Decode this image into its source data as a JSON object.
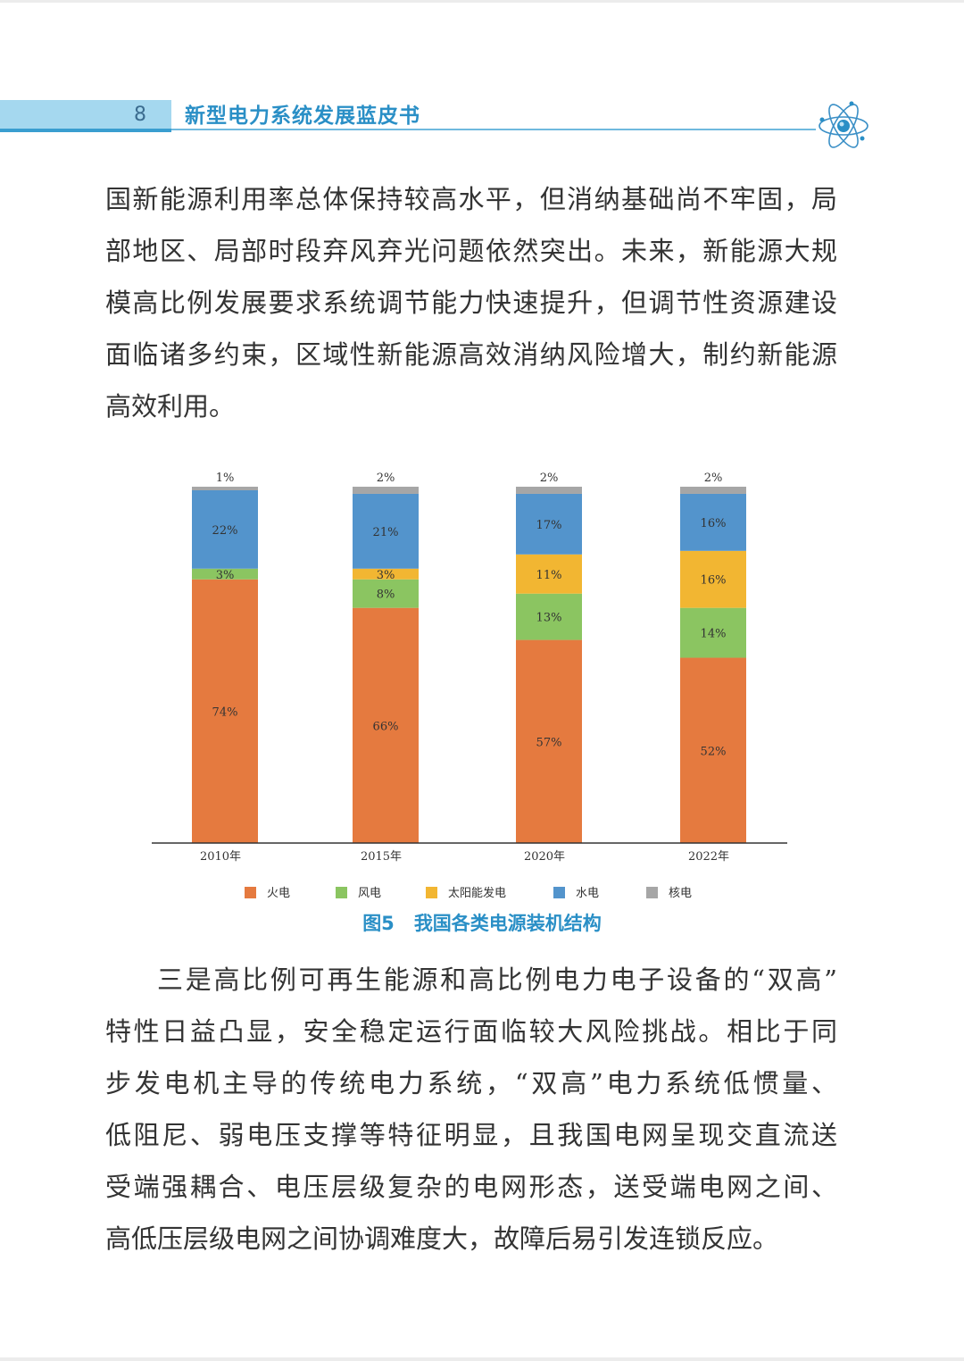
{
  "header": {
    "page_number": "8",
    "book_title": "新型电力系统发展蓝皮书",
    "logo_icon": "atom-icon"
  },
  "paragraph1": {
    "lines": [
      "国新能源利用率总体保持较高水平，但消纳基础尚不牢固，局",
      "部地区、局部时段弃风弃光问题依然突出。未来，新能源大规",
      "模高比例发展要求系统调节能力快速提升，但调节性资源建设",
      "面临诸多约束，区域性新能源高效消纳风险增大，制约新能源",
      "高效利用。"
    ]
  },
  "figure": {
    "number": "图5",
    "title": "我国各类电源装机结构"
  },
  "chart_data": {
    "type": "bar",
    "stacked": true,
    "categories": [
      "2010年",
      "2015年",
      "2020年",
      "2022年"
    ],
    "series": [
      {
        "name": "火电",
        "color": "#e57a3f",
        "values": [
          74,
          66,
          57,
          52
        ],
        "labels": [
          "74%",
          "66%",
          "57%",
          "52%"
        ]
      },
      {
        "name": "风电",
        "color": "#8bc561",
        "values": [
          3,
          8,
          13,
          14
        ],
        "labels": [
          "3%",
          "8%",
          "13%",
          "14%"
        ]
      },
      {
        "name": "太阳能发电",
        "color": "#f2b632",
        "values": [
          0,
          3,
          11,
          16
        ],
        "labels": [
          "",
          "3%",
          "11%",
          "16%"
        ]
      },
      {
        "name": "水电",
        "color": "#5394cc",
        "values": [
          22,
          21,
          17,
          16
        ],
        "labels": [
          "22%",
          "21%",
          "17%",
          "16%"
        ]
      },
      {
        "name": "核电",
        "color": "#a6a6a6",
        "values": [
          1,
          2,
          2,
          2
        ],
        "labels": [
          "1%",
          "2%",
          "2%",
          "2%"
        ]
      }
    ],
    "ylim": [
      0,
      100
    ],
    "grid": false,
    "legend_position": "bottom"
  },
  "paragraph2": {
    "lines": [
      "三是高比例可再生能源和高比例电力电子设备的“双高”",
      "特性日益凸显，安全稳定运行面临较大风险挑战。相比于同",
      "步发电机主导的传统电力系统，“双高”电力系统低惯量、",
      "低阻尼、弱电压支撑等特征明显，且我国电网呈现交直流送",
      "受端强耦合、电压层级复杂的电网形态，送受端电网之间、",
      "高低压层级电网之间协调难度大，故障后易引发连锁反应。"
    ]
  }
}
